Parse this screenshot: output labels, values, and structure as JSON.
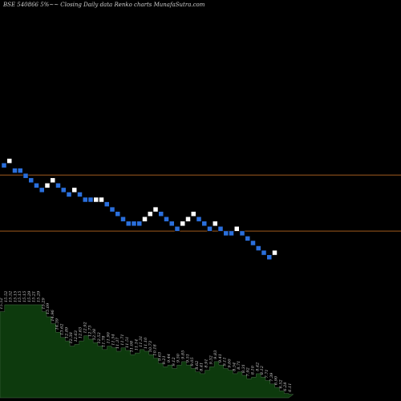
{
  "title": "BSE 540866  5%~~ Closing Daily data  Renko  charts MunafaSutra.com",
  "colors": {
    "background": "#000000",
    "up_brick": "#ffffff",
    "down_brick": "#2a6fdc",
    "reference_line": "#a05a1e",
    "volume_fill": "#0d3a0d",
    "volume_stroke": "#4a6a4a"
  },
  "chart_data": {
    "type": "renko",
    "reference_lines": [
      {
        "value": 25.0
      },
      {
        "value": 17.5
      }
    ],
    "bricks": [
      {
        "v": 26.3,
        "d": "down"
      },
      {
        "v": 26.9,
        "d": "up"
      },
      {
        "v": 25.6,
        "d": "down"
      },
      {
        "v": 25.6,
        "d": "down"
      },
      {
        "v": 24.9,
        "d": "down"
      },
      {
        "v": 24.3,
        "d": "down"
      },
      {
        "v": 23.6,
        "d": "down"
      },
      {
        "v": 23.0,
        "d": "down"
      },
      {
        "v": 23.6,
        "d": "up"
      },
      {
        "v": 24.3,
        "d": "up"
      },
      {
        "v": 23.6,
        "d": "down"
      },
      {
        "v": 23.0,
        "d": "down"
      },
      {
        "v": 22.4,
        "d": "down"
      },
      {
        "v": 23.0,
        "d": "up"
      },
      {
        "v": 22.4,
        "d": "down"
      },
      {
        "v": 21.7,
        "d": "down"
      },
      {
        "v": 21.7,
        "d": "down"
      },
      {
        "v": 21.7,
        "d": "up"
      },
      {
        "v": 21.7,
        "d": "up"
      },
      {
        "v": 21.1,
        "d": "down"
      },
      {
        "v": 20.4,
        "d": "down"
      },
      {
        "v": 19.8,
        "d": "down"
      },
      {
        "v": 19.1,
        "d": "down"
      },
      {
        "v": 18.5,
        "d": "down"
      },
      {
        "v": 18.5,
        "d": "down"
      },
      {
        "v": 18.5,
        "d": "down"
      },
      {
        "v": 19.1,
        "d": "up"
      },
      {
        "v": 19.8,
        "d": "up"
      },
      {
        "v": 20.4,
        "d": "up"
      },
      {
        "v": 19.8,
        "d": "down"
      },
      {
        "v": 19.1,
        "d": "down"
      },
      {
        "v": 18.5,
        "d": "down"
      },
      {
        "v": 17.8,
        "d": "down"
      },
      {
        "v": 18.5,
        "d": "up"
      },
      {
        "v": 19.1,
        "d": "up"
      },
      {
        "v": 19.8,
        "d": "up"
      },
      {
        "v": 19.1,
        "d": "down"
      },
      {
        "v": 18.5,
        "d": "down"
      },
      {
        "v": 17.8,
        "d": "down"
      },
      {
        "v": 18.5,
        "d": "up"
      },
      {
        "v": 17.8,
        "d": "down"
      },
      {
        "v": 17.2,
        "d": "down"
      },
      {
        "v": 17.2,
        "d": "down"
      },
      {
        "v": 17.8,
        "d": "up"
      },
      {
        "v": 17.2,
        "d": "down"
      },
      {
        "v": 16.5,
        "d": "down"
      },
      {
        "v": 15.9,
        "d": "down"
      },
      {
        "v": 15.2,
        "d": "down"
      },
      {
        "v": 14.6,
        "d": "down"
      },
      {
        "v": 14.0,
        "d": "down"
      },
      {
        "v": 14.6,
        "d": "up"
      }
    ],
    "volume": [
      {
        "v": 100,
        "label": "15.52"
      },
      {
        "v": 108,
        "label": "15.52"
      },
      {
        "v": 108,
        "label": "15.52"
      },
      {
        "v": 108,
        "label": "15.15"
      },
      {
        "v": 108,
        "label": "15.15"
      },
      {
        "v": 108,
        "label": "15.15"
      },
      {
        "v": 108,
        "label": "15.29"
      },
      {
        "v": 108,
        "label": "15.21"
      },
      {
        "v": 108,
        "label": "15.29"
      },
      {
        "v": 100,
        "label": "15.29"
      },
      {
        "v": 94,
        "label": "15.09"
      },
      {
        "v": 86,
        "label": "14.96"
      },
      {
        "v": 76,
        "label": "14.39"
      },
      {
        "v": 70,
        "label": "13.62"
      },
      {
        "v": 66,
        "label": "12.89"
      },
      {
        "v": 60,
        "label": "12.38"
      },
      {
        "v": 62,
        "label": "12.63"
      },
      {
        "v": 66,
        "label": "12.63"
      },
      {
        "v": 72,
        "label": "12.92"
      },
      {
        "v": 68,
        "label": "12.73"
      },
      {
        "v": 64,
        "label": "12.38"
      },
      {
        "v": 60,
        "label": "12.52"
      },
      {
        "v": 56,
        "label": "11.78"
      },
      {
        "v": 60,
        "label": "11.90"
      },
      {
        "v": 58,
        "label": "11.54"
      },
      {
        "v": 54,
        "label": "11.37"
      },
      {
        "v": 58,
        "label": "11.71"
      },
      {
        "v": 55,
        "label": "11.51"
      },
      {
        "v": 50,
        "label": "11.08"
      },
      {
        "v": 52,
        "label": "11.14"
      },
      {
        "v": 56,
        "label": "11.31"
      },
      {
        "v": 54,
        "label": "11.10"
      },
      {
        "v": 50,
        "label": "10.73"
      },
      {
        "v": 46,
        "label": "10.18"
      },
      {
        "v": 40,
        "label": "9.63"
      },
      {
        "v": 36,
        "label": "9.21"
      },
      {
        "v": 38,
        "label": "9.44"
      },
      {
        "v": 34,
        "label": "9.12"
      },
      {
        "v": 38,
        "label": "9.50"
      },
      {
        "v": 42,
        "label": "9.85"
      },
      {
        "v": 38,
        "label": "9.51"
      },
      {
        "v": 34,
        "label": "9.05"
      },
      {
        "v": 30,
        "label": "8.62"
      },
      {
        "v": 28,
        "label": "8.41"
      },
      {
        "v": 32,
        "label": "8.91"
      },
      {
        "v": 36,
        "label": "9.32"
      },
      {
        "v": 42,
        "label": "9.83"
      },
      {
        "v": 38,
        "label": "9.41"
      },
      {
        "v": 34,
        "label": "9.11"
      },
      {
        "v": 32,
        "label": "9.00"
      },
      {
        "v": 28,
        "label": "8.54"
      },
      {
        "v": 30,
        "label": "8.71"
      },
      {
        "v": 26,
        "label": "8.31"
      },
      {
        "v": 22,
        "label": "7.92"
      },
      {
        "v": 24,
        "label": "8.10"
      },
      {
        "v": 28,
        "label": "8.42"
      },
      {
        "v": 24,
        "label": "8.12"
      },
      {
        "v": 20,
        "label": "7.71"
      },
      {
        "v": 16,
        "label": "7.39"
      },
      {
        "v": 12,
        "label": "6.90"
      },
      {
        "v": 8,
        "label": "6.52"
      },
      {
        "v": 5,
        "label": "6.28"
      },
      {
        "v": 4,
        "label": "6.11"
      }
    ]
  }
}
